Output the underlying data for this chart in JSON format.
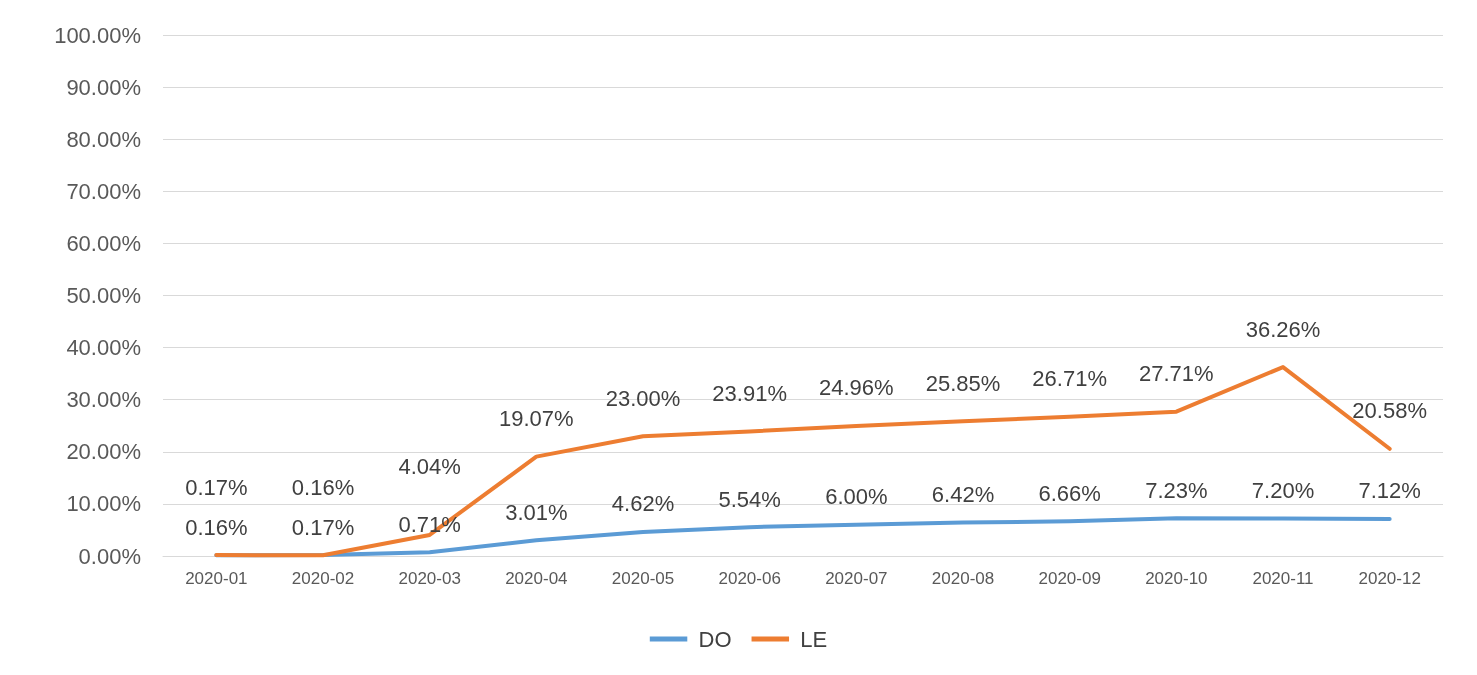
{
  "chart_data": {
    "type": "line",
    "categories": [
      "2020-01",
      "2020-02",
      "2020-03",
      "2020-04",
      "2020-05",
      "2020-06",
      "2020-07",
      "2020-08",
      "2020-09",
      "2020-10",
      "2020-11",
      "2020-12"
    ],
    "series": [
      {
        "name": "DO",
        "color": "#5b9bd5",
        "values": [
          0.16,
          0.17,
          0.71,
          3.01,
          4.62,
          5.54,
          6.0,
          6.42,
          6.66,
          7.23,
          7.2,
          7.12
        ],
        "value_labels": [
          "0.16%",
          "0.17%",
          "0.71%",
          "3.01%",
          "4.62%",
          "5.54%",
          "6.00%",
          "6.42%",
          "6.66%",
          "7.23%",
          "7.20%",
          "7.12%"
        ]
      },
      {
        "name": "LE",
        "color": "#ed7d31",
        "values": [
          0.17,
          0.16,
          4.04,
          19.07,
          23.0,
          23.91,
          24.96,
          25.85,
          26.71,
          27.71,
          36.26,
          20.58
        ],
        "value_labels": [
          "0.17%",
          "0.16%",
          "4.04%",
          "19.07%",
          "23.00%",
          "23.91%",
          "24.96%",
          "25.85%",
          "26.71%",
          "27.71%",
          "36.26%",
          "20.58%"
        ]
      }
    ],
    "ylim": [
      0,
      100
    ],
    "yticks": [
      {
        "value": 0,
        "label": "0.00%"
      },
      {
        "value": 10,
        "label": "10.00%"
      },
      {
        "value": 20,
        "label": "20.00%"
      },
      {
        "value": 30,
        "label": "30.00%"
      },
      {
        "value": 40,
        "label": "40.00%"
      },
      {
        "value": 50,
        "label": "50.00%"
      },
      {
        "value": 60,
        "label": "60.00%"
      },
      {
        "value": 70,
        "label": "70.00%"
      },
      {
        "value": 80,
        "label": "80.00%"
      },
      {
        "value": 90,
        "label": "90.00%"
      },
      {
        "value": 100,
        "label": "100.00%"
      }
    ],
    "grid": "y",
    "legend": "bottom",
    "marker": "none",
    "line_style": "solid"
  }
}
